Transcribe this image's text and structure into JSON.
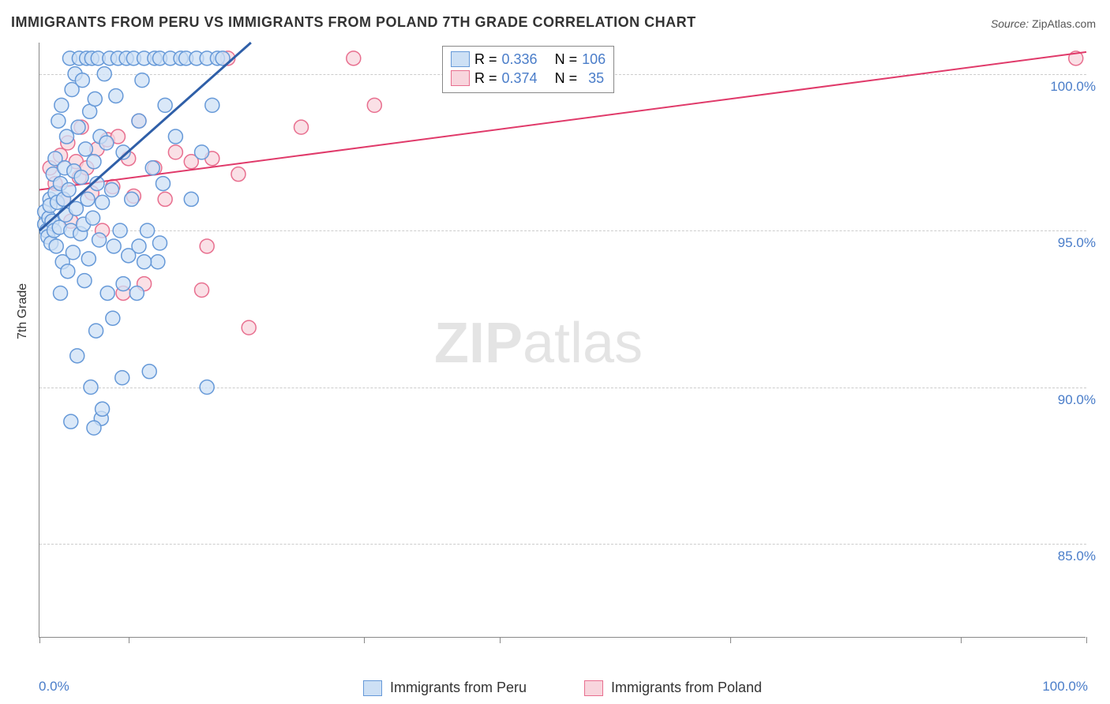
{
  "title": "IMMIGRANTS FROM PERU VS IMMIGRANTS FROM POLAND 7TH GRADE CORRELATION CHART",
  "source_label": "Source:",
  "source_value": "ZipAtlas.com",
  "ylabel": "7th Grade",
  "watermark": "ZIPatlas",
  "chart": {
    "type": "scatter",
    "xlim": [
      0,
      100
    ],
    "ylim": [
      82,
      101
    ],
    "xtick_labels": [
      "0.0%",
      "100.0%"
    ],
    "xtick_positions_major": [
      0,
      8.5,
      31,
      44,
      66,
      88,
      100
    ],
    "ytick_values": [
      85,
      90,
      95,
      100
    ],
    "ytick_labels": [
      "85.0%",
      "90.0%",
      "95.0%",
      "100.0%"
    ],
    "grid_color": "#cccccc",
    "axis_color": "#888888",
    "background_color": "#ffffff",
    "marker_radius": 9,
    "marker_stroke_width": 1.5,
    "line_width_a": 3,
    "line_width_b": 2,
    "series": {
      "a": {
        "label": "Immigrants from Peru",
        "fill": "#cde0f5",
        "stroke": "#6699d8",
        "line_color": "#2f5fa8",
        "R": "0.336",
        "N": "106",
        "trend": {
          "x1": 0,
          "y1": 95.0,
          "x2": 20.2,
          "y2": 101.0
        },
        "points": [
          [
            0.5,
            95.2
          ],
          [
            0.5,
            95.6
          ],
          [
            0.7,
            95.0
          ],
          [
            0.8,
            94.8
          ],
          [
            0.9,
            95.4
          ],
          [
            1.0,
            96.0
          ],
          [
            1.0,
            95.8
          ],
          [
            1.1,
            94.6
          ],
          [
            1.2,
            95.3
          ],
          [
            1.3,
            96.8
          ],
          [
            1.4,
            95.0
          ],
          [
            1.5,
            97.3
          ],
          [
            1.5,
            96.2
          ],
          [
            1.6,
            94.5
          ],
          [
            1.7,
            95.9
          ],
          [
            1.8,
            98.5
          ],
          [
            1.9,
            95.1
          ],
          [
            2.0,
            96.5
          ],
          [
            2.0,
            93.0
          ],
          [
            2.1,
            99.0
          ],
          [
            2.2,
            94.0
          ],
          [
            2.3,
            96.0
          ],
          [
            2.4,
            97.0
          ],
          [
            2.5,
            95.5
          ],
          [
            2.6,
            98.0
          ],
          [
            2.7,
            93.7
          ],
          [
            2.8,
            96.3
          ],
          [
            2.9,
            100.5
          ],
          [
            3.0,
            95.0
          ],
          [
            3.1,
            99.5
          ],
          [
            3.2,
            94.3
          ],
          [
            3.3,
            96.9
          ],
          [
            3.4,
            100.0
          ],
          [
            3.5,
            95.7
          ],
          [
            3.6,
            91.0
          ],
          [
            3.7,
            98.3
          ],
          [
            3.8,
            100.5
          ],
          [
            3.9,
            94.9
          ],
          [
            4.0,
            96.7
          ],
          [
            4.1,
            99.8
          ],
          [
            4.2,
            95.2
          ],
          [
            4.3,
            93.4
          ],
          [
            4.4,
            97.6
          ],
          [
            4.5,
            100.5
          ],
          [
            4.6,
            96.0
          ],
          [
            4.7,
            94.1
          ],
          [
            4.8,
            98.8
          ],
          [
            4.9,
            90.0
          ],
          [
            5.0,
            100.5
          ],
          [
            5.1,
            95.4
          ],
          [
            5.2,
            97.2
          ],
          [
            5.3,
            99.2
          ],
          [
            5.4,
            91.8
          ],
          [
            5.5,
            96.5
          ],
          [
            5.6,
            100.5
          ],
          [
            5.7,
            94.7
          ],
          [
            5.8,
            98.0
          ],
          [
            5.9,
            89.0
          ],
          [
            6.0,
            95.9
          ],
          [
            6.2,
            100.0
          ],
          [
            6.4,
            97.8
          ],
          [
            6.5,
            93.0
          ],
          [
            6.7,
            100.5
          ],
          [
            6.9,
            96.3
          ],
          [
            7.1,
            94.5
          ],
          [
            7.3,
            99.3
          ],
          [
            7.5,
            100.5
          ],
          [
            7.7,
            95.0
          ],
          [
            7.9,
            90.3
          ],
          [
            8.0,
            97.5
          ],
          [
            8.3,
            100.5
          ],
          [
            8.5,
            94.2
          ],
          [
            8.8,
            96.0
          ],
          [
            9.0,
            100.5
          ],
          [
            9.3,
            93.0
          ],
          [
            9.5,
            98.5
          ],
          [
            9.8,
            99.8
          ],
          [
            10.0,
            100.5
          ],
          [
            10.3,
            95.0
          ],
          [
            10.5,
            90.5
          ],
          [
            10.8,
            97.0
          ],
          [
            11.0,
            100.5
          ],
          [
            11.3,
            94.0
          ],
          [
            11.5,
            100.5
          ],
          [
            11.8,
            96.5
          ],
          [
            12.0,
            99.0
          ],
          [
            12.5,
            100.5
          ],
          [
            13.0,
            98.0
          ],
          [
            13.5,
            100.5
          ],
          [
            14.0,
            100.5
          ],
          [
            14.5,
            96.0
          ],
          [
            15.0,
            100.5
          ],
          [
            15.5,
            97.5
          ],
          [
            16.0,
            100.5
          ],
          [
            16.5,
            99.0
          ],
          [
            17.0,
            100.5
          ],
          [
            17.5,
            100.5
          ],
          [
            5.2,
            88.7
          ],
          [
            3.0,
            88.9
          ],
          [
            6.0,
            89.3
          ],
          [
            16.0,
            90.0
          ],
          [
            8.0,
            93.3
          ],
          [
            9.5,
            94.5
          ],
          [
            10.0,
            94.0
          ],
          [
            11.5,
            94.6
          ],
          [
            7.0,
            92.2
          ]
        ]
      },
      "b": {
        "label": "Immigrants from Poland",
        "fill": "#f8d5dd",
        "stroke": "#e86f8f",
        "line_color": "#e03a6a",
        "R": "0.374",
        "N": "35",
        "trend": {
          "x1": 0,
          "y1": 96.3,
          "x2": 100,
          "y2": 100.7
        },
        "points": [
          [
            1.0,
            97.0
          ],
          [
            1.5,
            96.5
          ],
          [
            2.0,
            97.4
          ],
          [
            2.3,
            96.0
          ],
          [
            2.7,
            97.8
          ],
          [
            3.0,
            95.3
          ],
          [
            3.5,
            97.2
          ],
          [
            3.8,
            96.7
          ],
          [
            4.0,
            98.3
          ],
          [
            4.5,
            97.0
          ],
          [
            5.0,
            96.2
          ],
          [
            5.5,
            97.6
          ],
          [
            6.0,
            95.0
          ],
          [
            6.5,
            97.9
          ],
          [
            7.0,
            96.4
          ],
          [
            7.5,
            98.0
          ],
          [
            8.0,
            93.0
          ],
          [
            8.5,
            97.3
          ],
          [
            9.0,
            96.1
          ],
          [
            9.5,
            98.5
          ],
          [
            10.0,
            93.3
          ],
          [
            11.0,
            97.0
          ],
          [
            12.0,
            96.0
          ],
          [
            13.0,
            97.5
          ],
          [
            14.5,
            97.2
          ],
          [
            15.5,
            93.1
          ],
          [
            16.0,
            94.5
          ],
          [
            16.5,
            97.3
          ],
          [
            18.0,
            100.5
          ],
          [
            19.0,
            96.8
          ],
          [
            20.0,
            91.9
          ],
          [
            25.0,
            98.3
          ],
          [
            30.0,
            100.5
          ],
          [
            32.0,
            99.0
          ],
          [
            99.0,
            100.5
          ]
        ]
      }
    }
  },
  "legend_top": {
    "R_label": "R =",
    "N_label": "N ="
  },
  "legend_bottom": {
    "a": "Immigrants from Peru",
    "b": "Immigrants from Poland"
  }
}
